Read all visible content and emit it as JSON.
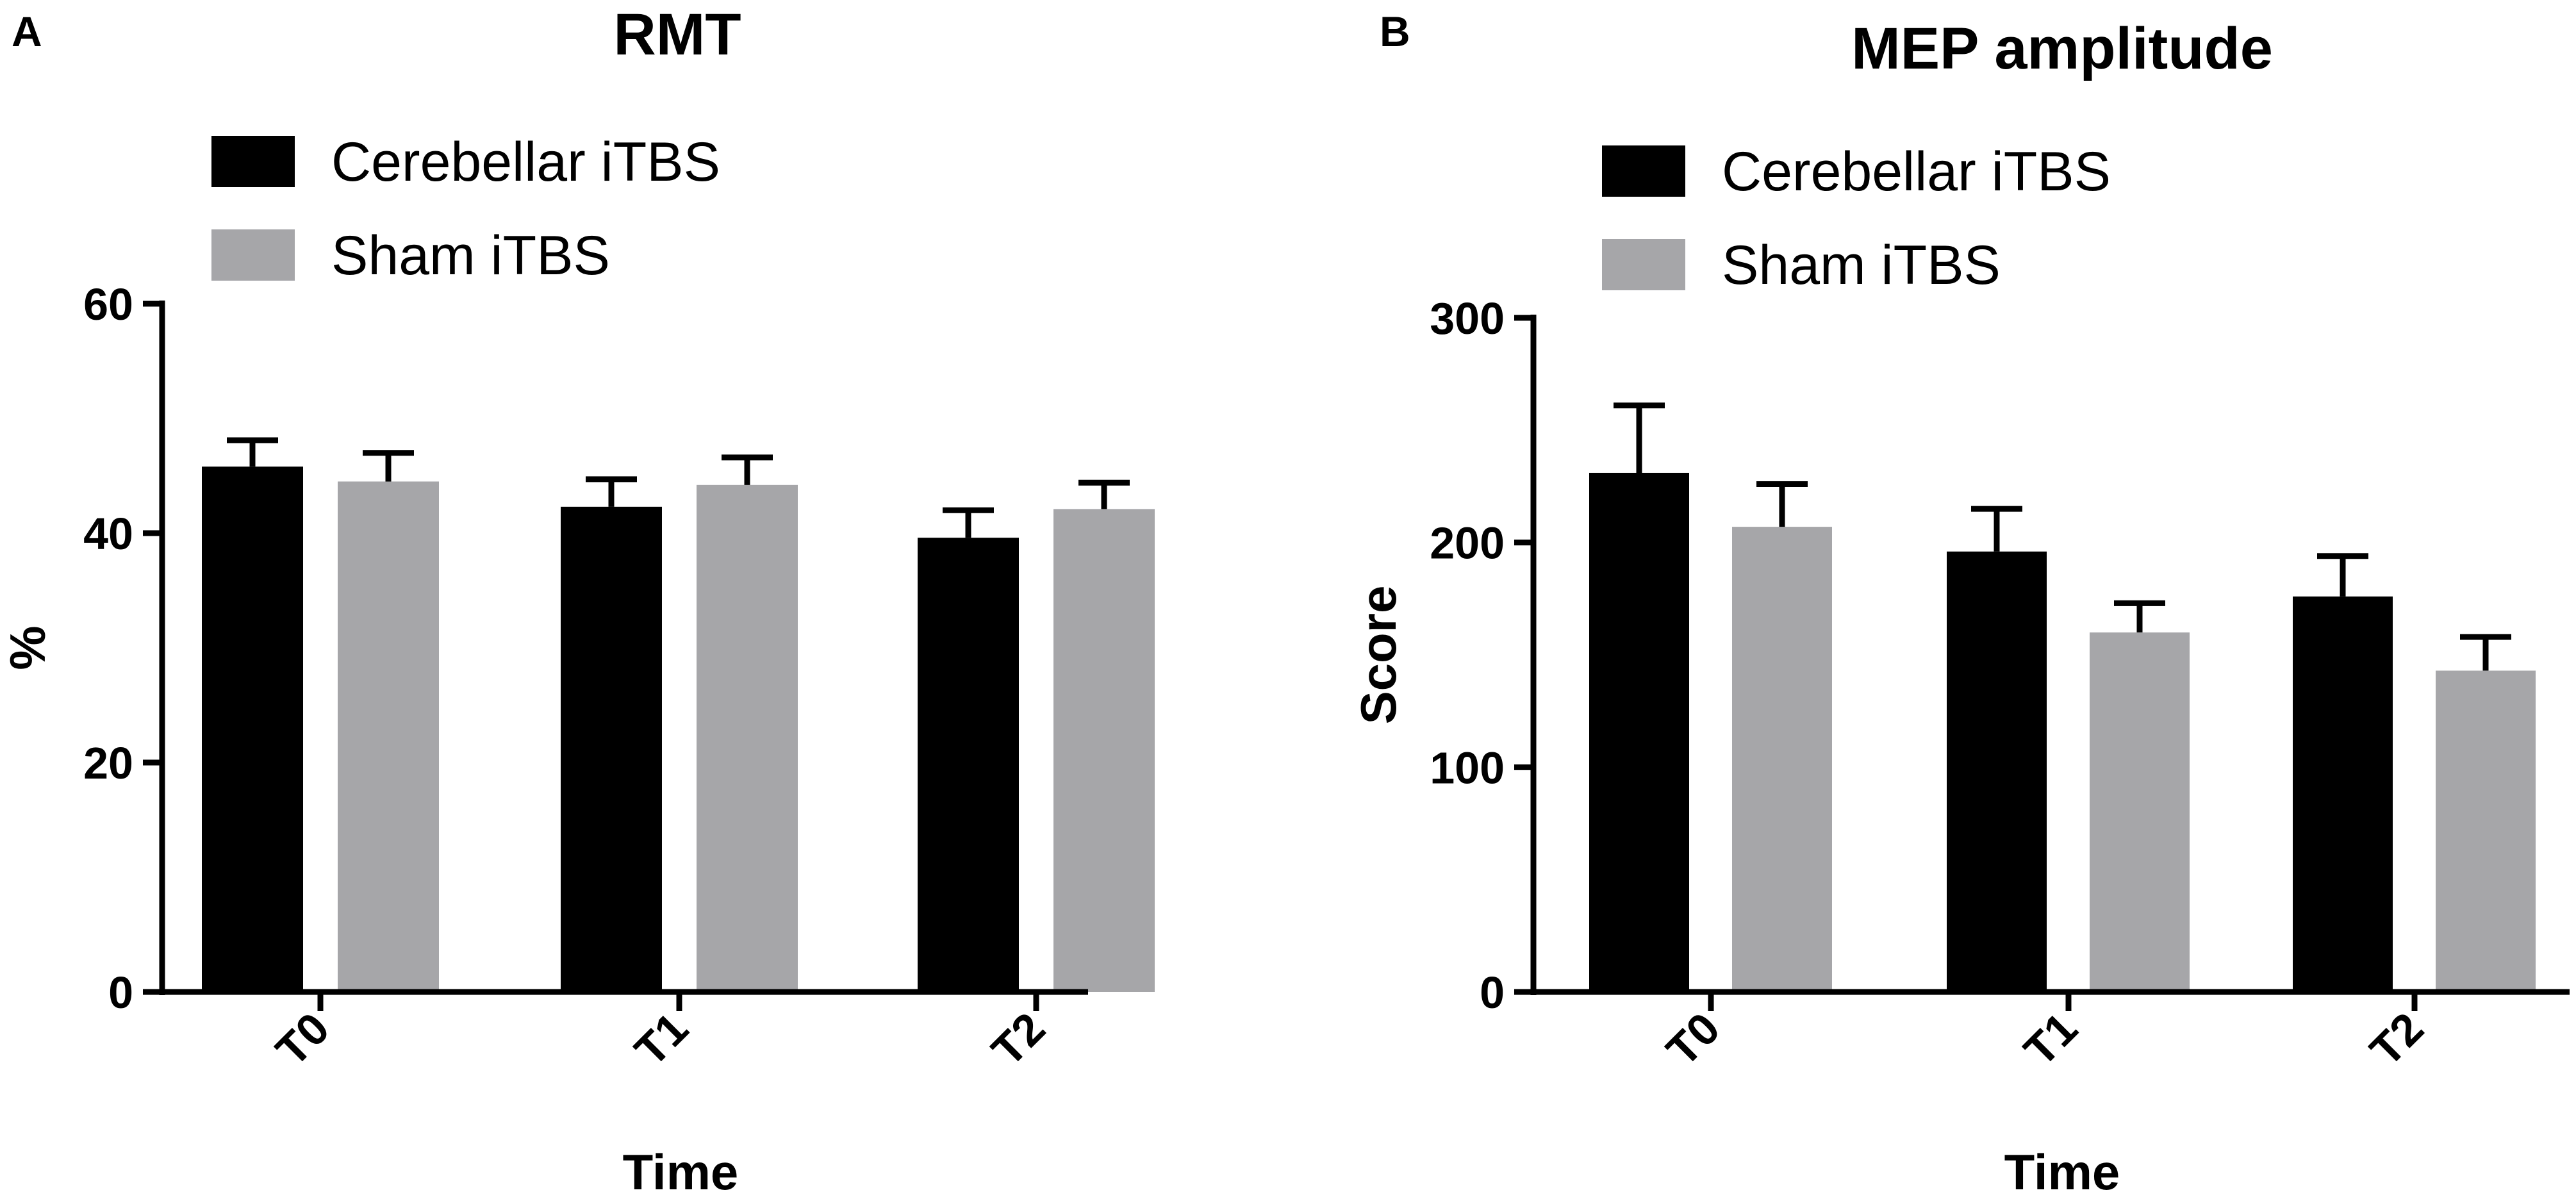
{
  "chart_data": [
    {
      "panel": "A",
      "type": "bar",
      "title": "RMT",
      "xlabel": "Time",
      "ylabel": "%",
      "ylim": [
        0,
        60
      ],
      "yticks": [
        0,
        20,
        40,
        60
      ],
      "categories": [
        "T0",
        "T1",
        "T2"
      ],
      "legend_position": "top-left",
      "grid": false,
      "series": [
        {
          "name": "Cerebellar iTBS",
          "color": "#000000",
          "values": [
            45.8,
            42.3,
            39.6
          ],
          "errors": [
            2.3,
            2.4,
            2.4
          ]
        },
        {
          "name": "Sham iTBS",
          "color": "#a6a6a9",
          "values": [
            44.5,
            44.2,
            42.1
          ],
          "errors": [
            2.5,
            2.4,
            2.3
          ]
        }
      ]
    },
    {
      "panel": "B",
      "type": "bar",
      "title": "MEP amplitude",
      "xlabel": "Time",
      "ylabel": "Score",
      "ylim": [
        0,
        300
      ],
      "yticks": [
        0,
        100,
        200,
        300
      ],
      "categories": [
        "T0",
        "T1",
        "T2"
      ],
      "legend_position": "top-left",
      "grid": false,
      "series": [
        {
          "name": "Cerebellar iTBS",
          "color": "#000000",
          "values": [
            231,
            196,
            176
          ],
          "errors": [
            30,
            19,
            18
          ]
        },
        {
          "name": "Sham iTBS",
          "color": "#a6a6a9",
          "values": [
            207,
            160,
            143
          ],
          "errors": [
            19,
            13,
            15
          ]
        }
      ]
    }
  ]
}
